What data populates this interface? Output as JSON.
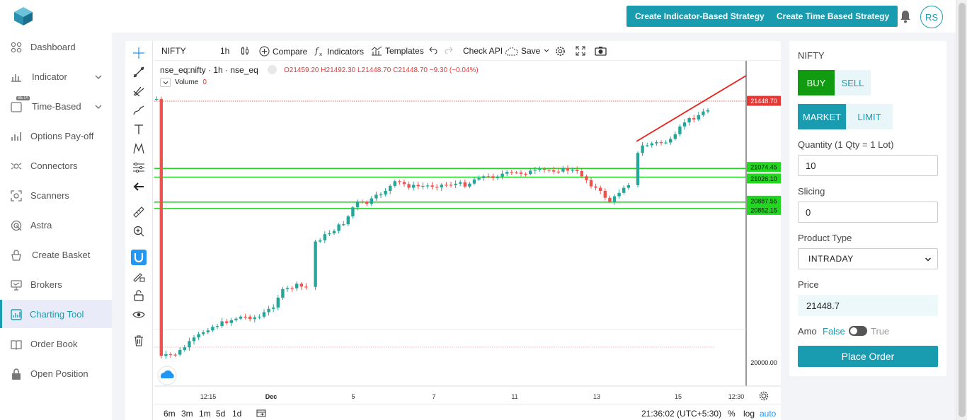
{
  "header": {
    "create_indicator_label": "Create Indicator-Based Strategy",
    "create_time_label": "Create Time Based Strategy",
    "user_initials": "RS"
  },
  "sidebar": {
    "items": [
      {
        "label": "Dashboard",
        "icon": "dashboard-icon"
      },
      {
        "label": "Indicator",
        "icon": "indicator-icon"
      },
      {
        "label": "Time-Based",
        "icon": "time-icon",
        "badge": "BETA"
      },
      {
        "label": "Options Pay-off",
        "icon": "bar-chart-icon"
      },
      {
        "label": "Connectors",
        "icon": "connectors-icon"
      },
      {
        "label": "Scanners",
        "icon": "scanner-icon"
      },
      {
        "label": "Astra",
        "icon": "astra-icon"
      },
      {
        "label": "Create Basket",
        "icon": "basket-icon"
      },
      {
        "label": "Brokers",
        "icon": "brokers-icon"
      },
      {
        "label": "Charting Tool",
        "icon": "chart-icon",
        "active": true
      },
      {
        "label": "Order Book",
        "icon": "book-icon"
      },
      {
        "label": "Open Position",
        "icon": "lock-icon"
      }
    ]
  },
  "chart_toolbar": {
    "symbol": "NIFTY",
    "interval": "1h",
    "compare_label": "Compare",
    "indicators_label": "Indicators",
    "templates_label": "Templates",
    "check_api_label": "Check API",
    "save_label": "Save"
  },
  "legend": {
    "title": "nse_eq:nifty · 1h · nse_eq",
    "open": "O21459.20",
    "high": "H21492.30",
    "low": "L21448.70",
    "close": "C21448.70",
    "change": "−9.30 (−0.04%)",
    "volume_label": "Volume",
    "volume_value": "0"
  },
  "chart_data": {
    "type": "candlestick",
    "price_labels": [
      {
        "value": "21448.70",
        "color": "#e53935"
      },
      {
        "value": "21074.45",
        "color": "#22d622"
      },
      {
        "value": "21026.10",
        "color": "#22d622"
      },
      {
        "value": "20887.55",
        "color": "#22d622"
      },
      {
        "value": "20852.15",
        "color": "#22d622"
      },
      {
        "value": "20000.00",
        "color": "none"
      }
    ],
    "x_ticks": [
      "12:15",
      "Dec",
      "5",
      "7",
      "11",
      "13",
      "15",
      "12:30"
    ],
    "horizontal_lines": [
      21074.45,
      21026.1,
      20887.55,
      20852.15
    ],
    "last_close": 21448.7
  },
  "bottom_bar": {
    "ranges": [
      "6m",
      "3m",
      "1m",
      "5d",
      "1d"
    ],
    "time": "21:36:02 (UTC+5:30)",
    "percent": "%",
    "log": "log",
    "auto": "auto"
  },
  "order_panel": {
    "symbol": "NIFTY",
    "buy": "BUY",
    "sell": "SELL",
    "market": "MARKET",
    "limit": "LIMIT",
    "quantity_label": "Quantity (1 Qty = 1 Lot)",
    "quantity": "10",
    "slicing_label": "Slicing",
    "slicing": "0",
    "product_type_label": "Product Type",
    "product_type": "INTRADAY",
    "price_label": "Price",
    "price": "21448.7",
    "amo_label": "Amo",
    "amo_false": "False",
    "amo_true": "True",
    "place_order": "Place Order"
  },
  "colors": {
    "accent": "#1a9cb0",
    "buy": "#119b11",
    "up": "#26a69a",
    "down": "#ef5350",
    "level": "#22d622"
  }
}
